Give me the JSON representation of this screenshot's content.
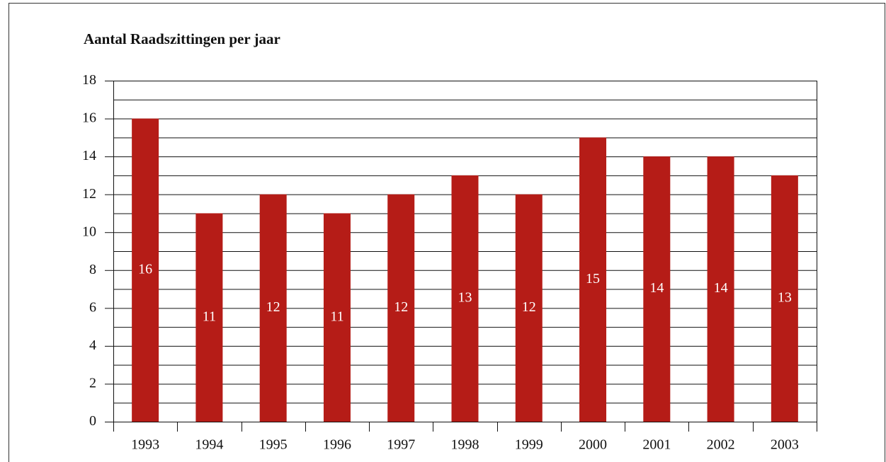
{
  "chart_data": {
    "type": "bar",
    "title": "Aantal Raadszittingen per jaar",
    "categories": [
      "1993",
      "1994",
      "1995",
      "1996",
      "1997",
      "1998",
      "1999",
      "2000",
      "2001",
      "2002",
      "2003"
    ],
    "values": [
      16,
      11,
      12,
      11,
      12,
      13,
      12,
      15,
      14,
      14,
      13
    ],
    "color": "#b51c17",
    "ylim": [
      0,
      18
    ],
    "yticks": [
      0,
      2,
      4,
      6,
      8,
      10,
      12,
      14,
      16,
      18
    ],
    "grid": true
  }
}
